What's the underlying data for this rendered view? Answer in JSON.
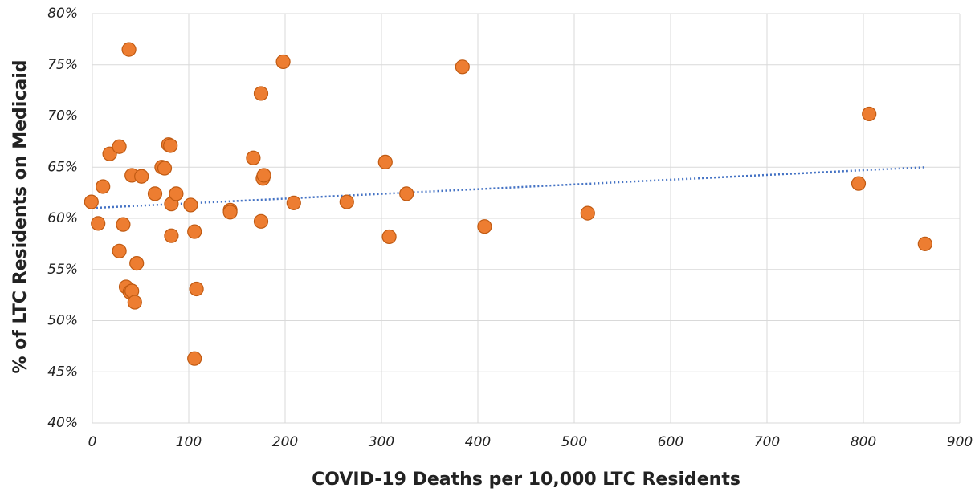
{
  "chart_data": {
    "type": "scatter",
    "x_label": "COVID-19 Deaths per 10,000 LTC Residents",
    "y_label": "% of LTC Residents on Medicaid",
    "color": "#ed7d31",
    "grid": true,
    "xlim": [
      0,
      900
    ],
    "xticks": [
      0,
      100,
      200,
      300,
      400,
      500,
      600,
      700,
      800,
      900
    ],
    "ylim": [
      40,
      80
    ],
    "yticks": [
      {
        "value": 40,
        "label": "40%"
      },
      {
        "value": 45,
        "label": "45%"
      },
      {
        "value": 50,
        "label": "50%"
      },
      {
        "value": 55,
        "label": "55%"
      },
      {
        "value": 60,
        "label": "60%"
      },
      {
        "value": 65,
        "label": "65%"
      },
      {
        "value": 70,
        "label": "70%"
      },
      {
        "value": 75,
        "label": "75%"
      },
      {
        "value": 80,
        "label": "80%"
      }
    ],
    "x": [
      -1,
      6,
      11,
      18,
      28,
      28,
      32,
      38,
      41,
      51,
      35,
      39,
      41,
      44,
      46,
      65,
      72,
      75,
      79,
      81,
      82,
      87,
      82,
      102,
      106,
      108,
      106,
      143,
      143,
      167,
      175,
      177,
      178,
      175,
      198,
      209,
      264,
      304,
      308,
      326,
      384,
      407,
      514,
      795,
      806,
      864
    ],
    "values": [
      61.6,
      59.5,
      63.1,
      66.3,
      67.0,
      56.8,
      59.4,
      76.5,
      64.2,
      64.1,
      53.3,
      52.8,
      52.9,
      51.8,
      55.6,
      62.4,
      65.0,
      64.9,
      67.2,
      67.1,
      61.4,
      62.4,
      58.3,
      61.3,
      58.7,
      53.1,
      46.3,
      60.8,
      60.6,
      65.9,
      72.2,
      63.9,
      64.2,
      59.7,
      75.3,
      61.5,
      61.6,
      65.5,
      58.2,
      62.4,
      74.8,
      59.2,
      60.5,
      63.4,
      70.2,
      57.5
    ],
    "trendline": {
      "color": "#4472c4",
      "x": [
        0,
        865
      ],
      "values": [
        61.0,
        65.0
      ]
    }
  }
}
